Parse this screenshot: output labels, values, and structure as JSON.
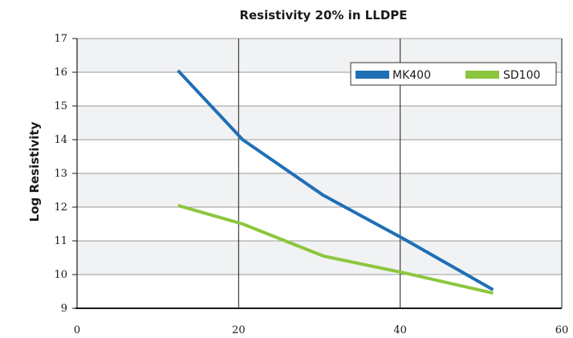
{
  "chart_data": {
    "type": "line",
    "title": "Resistivity 20% in LLDPE",
    "xlabel": "",
    "ylabel": "Log Resistivity",
    "xlim": [
      0,
      60
    ],
    "ylim": [
      9,
      17
    ],
    "x_ticks": [
      "0",
      "20",
      "40",
      "60"
    ],
    "y_ticks": [
      "9",
      "10",
      "11",
      "12",
      "13",
      "14",
      "15",
      "16",
      "17"
    ],
    "grid": true,
    "legend_position": "top-right",
    "series": [
      {
        "name": "MK400",
        "color": "#1f6fb5",
        "x": [
          12.5,
          20.5,
          30.5,
          40.5,
          51.5
        ],
        "y": [
          16.05,
          14.0,
          12.35,
          11.05,
          9.55
        ]
      },
      {
        "name": "SD100",
        "color": "#8cc63e",
        "x": [
          12.5,
          20.5,
          30.5,
          40.5,
          51.5
        ],
        "y": [
          12.05,
          11.5,
          10.55,
          10.05,
          9.45
        ]
      }
    ]
  }
}
